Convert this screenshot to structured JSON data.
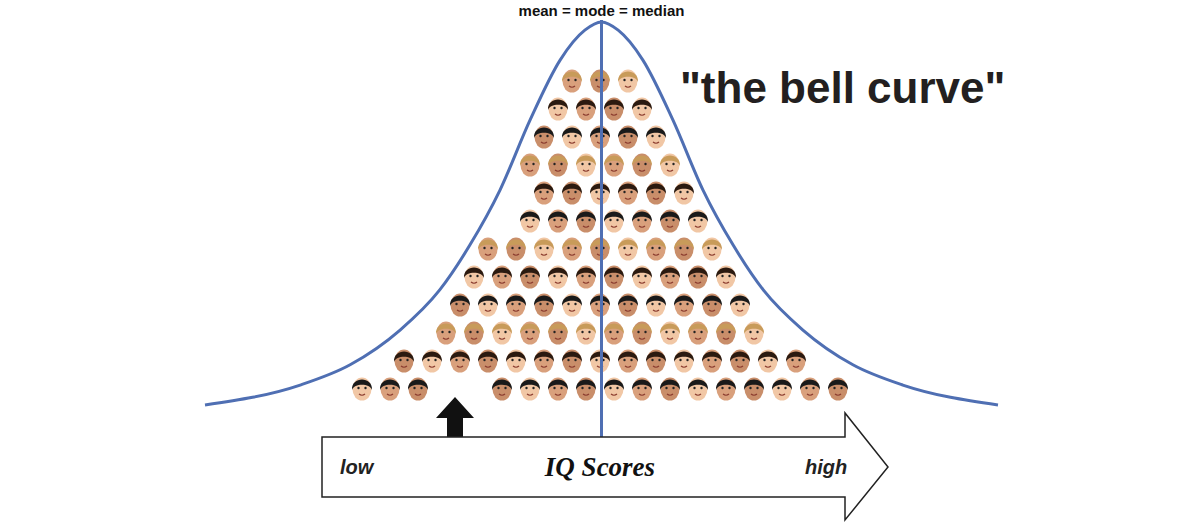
{
  "chart_data": {
    "type": "line",
    "title": "\"the bell curve\"",
    "annotations": [
      {
        "text": "mean = mode = median",
        "x": 50
      }
    ],
    "xlabel": "IQ Scores",
    "xlabel_low": "low",
    "xlabel_high": "high",
    "x": [
      0,
      12.0,
      18.3,
      24.6,
      29.6,
      33.4,
      37.2,
      41.0,
      44.8,
      47.9,
      50,
      52.1,
      55.2,
      59.0,
      62.8,
      66.6,
      70.4,
      75.4,
      81.7,
      88.0,
      100
    ],
    "values": [
      1.8,
      6.9,
      12.1,
      21.0,
      31.3,
      42.8,
      56.9,
      74.9,
      90.3,
      97.9,
      100,
      97.9,
      90.3,
      74.9,
      56.9,
      42.8,
      31.3,
      21.0,
      12.1,
      6.9,
      1.8
    ],
    "color": "#4f6fb3",
    "xlim": [
      0,
      100
    ],
    "ylim": [
      0,
      100
    ],
    "tick_labels": false,
    "grid": false
  }
}
